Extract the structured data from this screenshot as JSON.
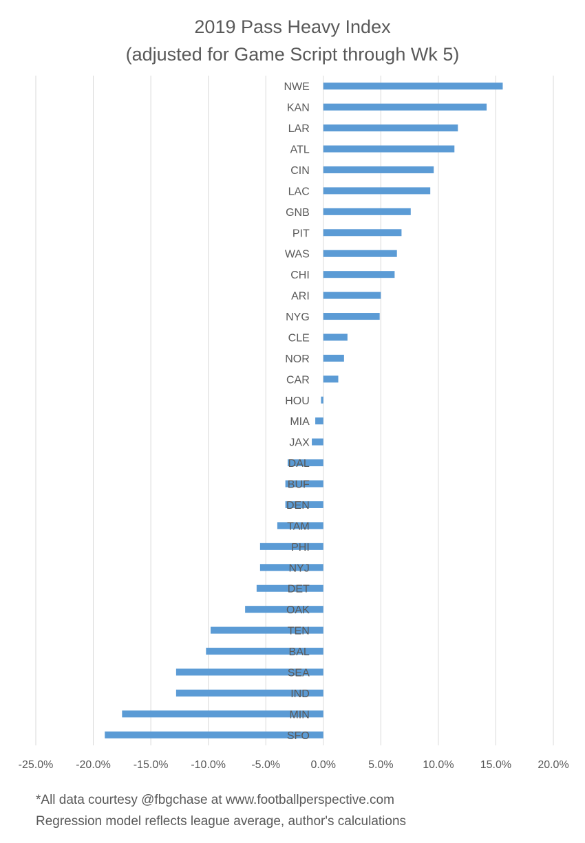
{
  "chart_data": {
    "type": "bar",
    "orientation": "horizontal",
    "title": "2019 Pass Heavy Index",
    "subtitle": "(adjusted for Game Script through Wk 5)",
    "xlabel": "",
    "ylabel": "",
    "xlim": [
      -25,
      20
    ],
    "x_ticks": [
      "-25.0%",
      "-20.0%",
      "-15.0%",
      "-10.0%",
      "-5.0%",
      "0.0%",
      "5.0%",
      "10.0%",
      "15.0%",
      "20.0%"
    ],
    "x_tick_values": [
      -25,
      -20,
      -15,
      -10,
      -5,
      0,
      5,
      10,
      15,
      20
    ],
    "grid": "vertical",
    "legend": "none",
    "bar_color": "#5b9bd5",
    "categories": [
      "NWE",
      "KAN",
      "LAR",
      "ATL",
      "CIN",
      "LAC",
      "GNB",
      "PIT",
      "WAS",
      "CHI",
      "ARI",
      "NYG",
      "CLE",
      "NOR",
      "CAR",
      "HOU",
      "MIA",
      "JAX",
      "DAL",
      "BUF",
      "DEN",
      "TAM",
      "PHI",
      "NYJ",
      "DET",
      "OAK",
      "TEN",
      "BAL",
      "SEA",
      "IND",
      "MIN",
      "SFO"
    ],
    "values": [
      15.6,
      14.2,
      11.7,
      11.4,
      9.6,
      9.3,
      7.6,
      6.8,
      6.4,
      6.2,
      5.0,
      4.9,
      2.1,
      1.8,
      1.3,
      -0.2,
      -0.7,
      -1.0,
      -3.1,
      -3.3,
      -3.3,
      -4.0,
      -5.5,
      -5.5,
      -5.8,
      -6.8,
      -9.8,
      -10.2,
      -12.8,
      -12.8,
      -17.5,
      -19.0
    ]
  },
  "footnotes": {
    "line1": "*All data courtesy @fbgchase at www.footballperspective.com",
    "line2": "Regression model reflects league average, author's calculations"
  }
}
